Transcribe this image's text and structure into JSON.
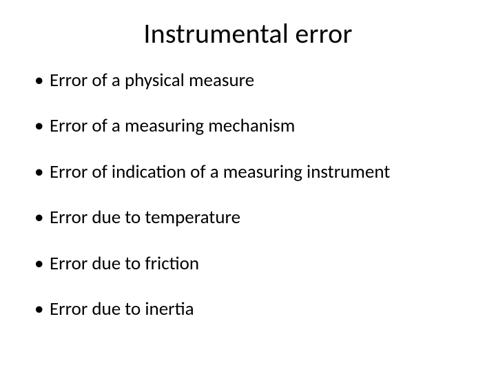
{
  "slide": {
    "title": "Instrumental error",
    "title_fontsize": 40,
    "body_fontsize": 27,
    "bullets": [
      "Error of a physical measure",
      "Error of a measuring mechanism",
      "Error of indication of a measuring instrument",
      "Error due to temperature",
      "Error due to friction",
      "Error due to inertia"
    ],
    "background_color": "#ffffff",
    "text_color": "#000000",
    "font_family": "Calibri"
  }
}
